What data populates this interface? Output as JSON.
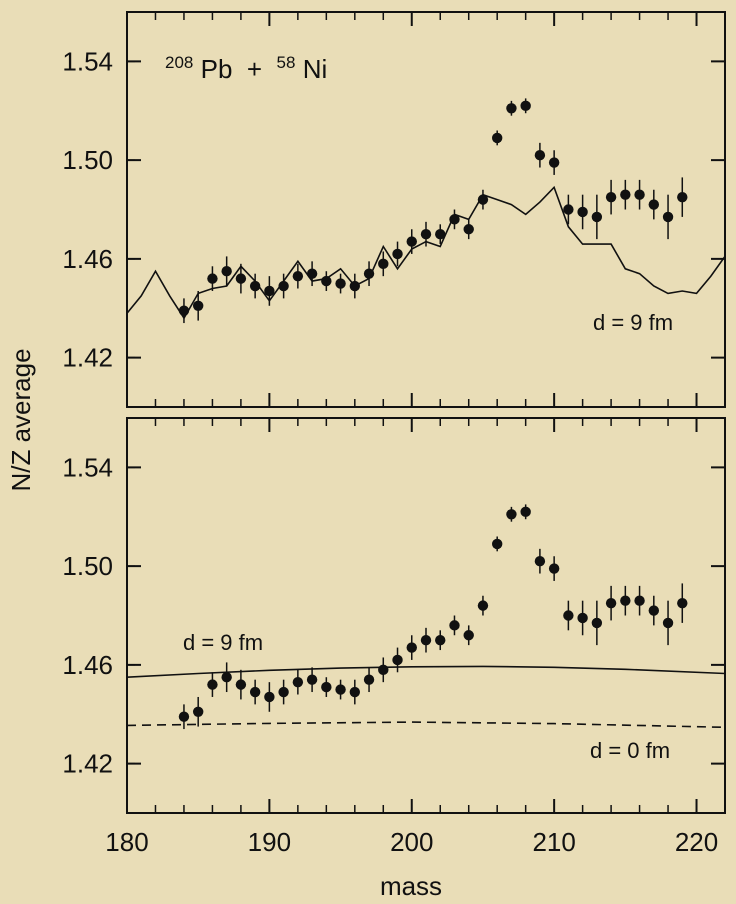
{
  "chart_data": [
    {
      "type": "scatter",
      "panel": "top",
      "title": "",
      "reaction": {
        "a_mass": "208",
        "a_sym": "Pb",
        "plus": " + ",
        "b_mass": "58",
        "b_sym": "Ni"
      },
      "xlim": [
        180,
        222
      ],
      "ylim": [
        1.4,
        1.56
      ],
      "yticks": [
        "1.42",
        "1.46",
        "1.50",
        "1.54"
      ],
      "ytick_values": [
        1.42,
        1.46,
        1.5,
        1.54
      ],
      "xticks": [
        180,
        190,
        200,
        210,
        220
      ],
      "grid": false,
      "series": [
        {
          "kind": "points_with_errors",
          "x": [
            184,
            185,
            186,
            187,
            188,
            189,
            190,
            191,
            192,
            193,
            194,
            195,
            196,
            197,
            198,
            199,
            200,
            201,
            202,
            203,
            204,
            205,
            206,
            207,
            208,
            209,
            210,
            211,
            212,
            213,
            214,
            215,
            216,
            217,
            218,
            219
          ],
          "y": [
            1.439,
            1.441,
            1.452,
            1.455,
            1.452,
            1.449,
            1.447,
            1.449,
            1.453,
            1.454,
            1.451,
            1.45,
            1.449,
            1.454,
            1.458,
            1.462,
            1.467,
            1.47,
            1.47,
            1.476,
            1.472,
            1.484,
            1.509,
            1.521,
            1.522,
            1.502,
            1.499,
            1.48,
            1.479,
            1.477,
            1.485,
            1.486,
            1.486,
            1.482,
            1.477,
            1.485
          ],
          "err": [
            0.005,
            0.006,
            0.005,
            0.006,
            0.006,
            0.005,
            0.006,
            0.005,
            0.005,
            0.005,
            0.004,
            0.004,
            0.005,
            0.005,
            0.005,
            0.005,
            0.005,
            0.005,
            0.004,
            0.004,
            0.004,
            0.004,
            0.003,
            0.003,
            0.003,
            0.005,
            0.005,
            0.006,
            0.007,
            0.009,
            0.007,
            0.006,
            0.006,
            0.006,
            0.009,
            0.008
          ]
        },
        {
          "kind": "line",
          "style": "solid",
          "x": [
            180,
            181,
            182,
            183,
            184,
            185,
            186,
            187,
            188,
            189,
            190,
            191,
            192,
            193,
            194,
            195,
            196,
            197,
            198,
            199,
            200,
            201,
            202,
            203,
            204,
            205,
            206,
            207,
            208,
            209,
            210,
            211,
            212,
            213,
            214,
            215,
            216,
            217,
            218,
            219,
            220,
            221,
            222
          ],
          "y": [
            1.438,
            1.445,
            1.455,
            1.445,
            1.436,
            1.446,
            1.448,
            1.449,
            1.457,
            1.451,
            1.443,
            1.451,
            1.459,
            1.451,
            1.452,
            1.456,
            1.449,
            1.452,
            1.465,
            1.456,
            1.464,
            1.467,
            1.465,
            1.478,
            1.476,
            1.486,
            1.484,
            1.482,
            1.478,
            1.483,
            1.489,
            1.473,
            1.466,
            1.466,
            1.466,
            1.456,
            1.454,
            1.449,
            1.446,
            1.447,
            1.446,
            1.453,
            1.461
          ]
        }
      ],
      "annotations": [
        {
          "text": "d = 9 fm",
          "x": 221,
          "y": 1.434
        }
      ]
    },
    {
      "type": "scatter",
      "panel": "bottom",
      "title": "",
      "xlim": [
        180,
        222
      ],
      "ylim": [
        1.4,
        1.56
      ],
      "yticks": [
        "1.42",
        "1.46",
        "1.50",
        "1.54"
      ],
      "ytick_values": [
        1.42,
        1.46,
        1.5,
        1.54
      ],
      "xticks": [
        "180",
        "190",
        "200",
        "210",
        "220"
      ],
      "xtick_values": [
        180,
        190,
        200,
        210,
        220
      ],
      "xlabel": "mass",
      "grid": false,
      "series": [
        {
          "kind": "points_with_errors",
          "x": [
            184,
            185,
            186,
            187,
            188,
            189,
            190,
            191,
            192,
            193,
            194,
            195,
            196,
            197,
            198,
            199,
            200,
            201,
            202,
            203,
            204,
            205,
            206,
            207,
            208,
            209,
            210,
            211,
            212,
            213,
            214,
            215,
            216,
            217,
            218,
            219
          ],
          "y": [
            1.439,
            1.441,
            1.452,
            1.455,
            1.452,
            1.449,
            1.447,
            1.449,
            1.453,
            1.454,
            1.451,
            1.45,
            1.449,
            1.454,
            1.458,
            1.462,
            1.467,
            1.47,
            1.47,
            1.476,
            1.472,
            1.484,
            1.509,
            1.521,
            1.522,
            1.502,
            1.499,
            1.48,
            1.479,
            1.477,
            1.485,
            1.486,
            1.486,
            1.482,
            1.477,
            1.485
          ],
          "err": [
            0.005,
            0.006,
            0.005,
            0.006,
            0.006,
            0.005,
            0.006,
            0.005,
            0.005,
            0.005,
            0.004,
            0.004,
            0.005,
            0.005,
            0.005,
            0.005,
            0.005,
            0.005,
            0.004,
            0.004,
            0.004,
            0.004,
            0.003,
            0.003,
            0.003,
            0.005,
            0.005,
            0.006,
            0.007,
            0.009,
            0.007,
            0.006,
            0.006,
            0.006,
            0.009,
            0.008
          ]
        },
        {
          "kind": "line",
          "style": "solid",
          "label": "d = 9 fm",
          "x": [
            180,
            185,
            190,
            195,
            200,
            205,
            210,
            215,
            222
          ],
          "y": [
            1.455,
            1.4565,
            1.4578,
            1.4587,
            1.4592,
            1.4594,
            1.459,
            1.4582,
            1.4565
          ]
        },
        {
          "kind": "line",
          "style": "dashed",
          "label": "d = 0 fm",
          "x": [
            180,
            190,
            200,
            210,
            222
          ],
          "y": [
            1.4355,
            1.4363,
            1.4368,
            1.4362,
            1.4347
          ]
        }
      ],
      "annotations": [
        {
          "text": "d = 9 fm",
          "x": 183,
          "y": 1.4665
        },
        {
          "text": "d = 0 fm",
          "x": 219,
          "y": 1.4285
        }
      ]
    }
  ],
  "ylabel": "N/Z average",
  "colors": {
    "background": "#e9ddb7",
    "ink": "#111111"
  }
}
